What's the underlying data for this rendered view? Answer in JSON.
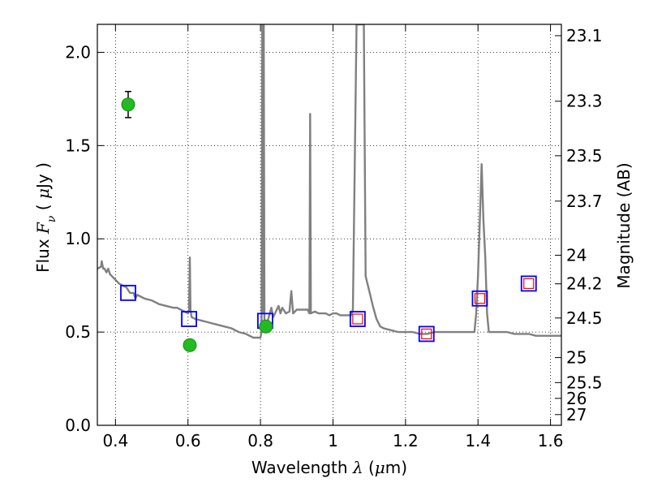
{
  "chart_data": {
    "type": "line",
    "xlabel": {
      "prefix": "Wavelength  ",
      "symbol": "λ",
      "suffix": " (",
      "unit_symbol": "μ",
      "unit_rest": "m)"
    },
    "ylabel": {
      "prefix": "Flux  ",
      "symbol": "F",
      "subscript": "ν",
      "suffix": "  ( ",
      "unit_symbol": "μ",
      "unit_rest": "Jy )"
    },
    "y2label": "Magnitude (AB)",
    "xlim": [
      0.35,
      1.63
    ],
    "ylim": [
      0.0,
      2.15
    ],
    "grid": true,
    "x_ticks": [
      {
        "v": 0.4,
        "label": "0.4"
      },
      {
        "v": 0.6,
        "label": "0.6"
      },
      {
        "v": 0.8,
        "label": "0.8"
      },
      {
        "v": 1.0,
        "label": "1"
      },
      {
        "v": 1.2,
        "label": "1.2"
      },
      {
        "v": 1.4,
        "label": "1.4"
      },
      {
        "v": 1.6,
        "label": "1.6"
      }
    ],
    "y_ticks": [
      {
        "v": 0.0,
        "label": "0.0"
      },
      {
        "v": 0.5,
        "label": "0.5"
      },
      {
        "v": 1.0,
        "label": "1.0"
      },
      {
        "v": 1.5,
        "label": "1.5"
      },
      {
        "v": 2.0,
        "label": "2.0"
      }
    ],
    "y2_ticks": [
      {
        "mag": 23.1,
        "label": "23.1"
      },
      {
        "mag": 23.3,
        "label": "23.3"
      },
      {
        "mag": 23.5,
        "label": "23.5"
      },
      {
        "mag": 23.7,
        "label": "23.7"
      },
      {
        "mag": 24,
        "label": "24"
      },
      {
        "mag": 24.2,
        "label": "24.2"
      },
      {
        "mag": 24.5,
        "label": "24.5"
      },
      {
        "mag": 25,
        "label": "25"
      },
      {
        "mag": 25.5,
        "label": "25.5"
      },
      {
        "mag": 26,
        "label": "26"
      },
      {
        "mag": 27,
        "label": "27"
      }
    ],
    "series": [
      {
        "kind": "line",
        "color": "#808080",
        "points": [
          [
            0.35,
            0.84
          ],
          [
            0.36,
            0.85
          ],
          [
            0.362,
            0.88
          ],
          [
            0.366,
            0.84
          ],
          [
            0.37,
            0.84
          ],
          [
            0.375,
            0.82
          ],
          [
            0.38,
            0.84
          ],
          [
            0.385,
            0.81
          ],
          [
            0.39,
            0.8
          ],
          [
            0.395,
            0.79
          ],
          [
            0.4,
            0.78
          ],
          [
            0.405,
            0.77
          ],
          [
            0.41,
            0.76
          ],
          [
            0.42,
            0.75
          ],
          [
            0.43,
            0.74
          ],
          [
            0.44,
            0.71
          ],
          [
            0.45,
            0.71
          ],
          [
            0.455,
            0.68
          ],
          [
            0.46,
            0.7
          ],
          [
            0.47,
            0.69
          ],
          [
            0.48,
            0.68
          ],
          [
            0.5,
            0.67
          ],
          [
            0.52,
            0.65
          ],
          [
            0.54,
            0.64
          ],
          [
            0.56,
            0.63
          ],
          [
            0.57,
            0.63
          ],
          [
            0.58,
            0.62
          ],
          [
            0.59,
            0.61
          ],
          [
            0.6,
            0.6
          ],
          [
            0.603,
            0.62
          ],
          [
            0.605,
            0.9
          ],
          [
            0.607,
            0.62
          ],
          [
            0.61,
            0.58
          ],
          [
            0.62,
            0.57
          ],
          [
            0.64,
            0.56
          ],
          [
            0.66,
            0.55
          ],
          [
            0.68,
            0.54
          ],
          [
            0.7,
            0.53
          ],
          [
            0.72,
            0.52
          ],
          [
            0.74,
            0.5
          ],
          [
            0.76,
            0.49
          ],
          [
            0.78,
            0.47
          ],
          [
            0.79,
            0.47
          ],
          [
            0.8,
            0.47
          ],
          [
            0.803,
            0.5
          ],
          [
            0.805,
            2.15
          ],
          [
            0.807,
            0.6
          ],
          [
            0.809,
            2.15
          ],
          [
            0.811,
            0.55
          ],
          [
            0.82,
            0.56
          ],
          [
            0.83,
            0.63
          ],
          [
            0.835,
            0.58
          ],
          [
            0.84,
            0.6
          ],
          [
            0.85,
            0.64
          ],
          [
            0.855,
            0.6
          ],
          [
            0.86,
            0.63
          ],
          [
            0.87,
            0.6
          ],
          [
            0.88,
            0.61
          ],
          [
            0.885,
            0.72
          ],
          [
            0.89,
            0.6
          ],
          [
            0.9,
            0.62
          ],
          [
            0.91,
            0.62
          ],
          [
            0.92,
            0.62
          ],
          [
            0.93,
            0.62
          ],
          [
            0.935,
            0.6
          ],
          [
            0.937,
            1.67
          ],
          [
            0.939,
            0.6
          ],
          [
            0.95,
            0.61
          ],
          [
            0.96,
            0.6
          ],
          [
            0.97,
            0.6
          ],
          [
            0.98,
            0.6
          ],
          [
            0.99,
            0.59
          ],
          [
            1.0,
            0.6
          ],
          [
            1.01,
            0.6
          ],
          [
            1.02,
            0.59
          ],
          [
            1.03,
            0.59
          ],
          [
            1.04,
            0.59
          ],
          [
            1.05,
            0.59
          ],
          [
            1.055,
            0.62
          ],
          [
            1.06,
            1.4
          ],
          [
            1.065,
            2.15
          ],
          [
            1.085,
            2.15
          ],
          [
            1.09,
            0.8
          ],
          [
            1.1,
            0.72
          ],
          [
            1.11,
            0.64
          ],
          [
            1.12,
            0.57
          ],
          [
            1.13,
            0.53
          ],
          [
            1.14,
            0.52
          ],
          [
            1.16,
            0.51
          ],
          [
            1.18,
            0.5
          ],
          [
            1.2,
            0.5
          ],
          [
            1.22,
            0.5
          ],
          [
            1.24,
            0.49
          ],
          [
            1.26,
            0.49
          ],
          [
            1.28,
            0.5
          ],
          [
            1.3,
            0.5
          ],
          [
            1.32,
            0.5
          ],
          [
            1.34,
            0.5
          ],
          [
            1.36,
            0.5
          ],
          [
            1.38,
            0.5
          ],
          [
            1.39,
            0.5
          ],
          [
            1.395,
            0.6
          ],
          [
            1.4,
            0.8
          ],
          [
            1.405,
            1.1
          ],
          [
            1.41,
            1.4
          ],
          [
            1.415,
            1.1
          ],
          [
            1.42,
            0.9
          ],
          [
            1.425,
            0.6
          ],
          [
            1.43,
            0.5
          ],
          [
            1.45,
            0.5
          ],
          [
            1.48,
            0.5
          ],
          [
            1.5,
            0.49
          ],
          [
            1.52,
            0.49
          ],
          [
            1.54,
            0.49
          ],
          [
            1.56,
            0.48
          ],
          [
            1.58,
            0.48
          ],
          [
            1.6,
            0.48
          ],
          [
            1.63,
            0.48
          ]
        ]
      },
      {
        "kind": "blue_squares",
        "color": "#0000ff",
        "points": [
          [
            0.435,
            0.71
          ],
          [
            0.603,
            0.57
          ],
          [
            0.813,
            0.56
          ],
          [
            1.068,
            0.57
          ],
          [
            1.258,
            0.49
          ],
          [
            1.405,
            0.68
          ],
          [
            1.54,
            0.76
          ]
        ]
      },
      {
        "kind": "red_squares",
        "color": "#ff0000",
        "points": [
          [
            1.068,
            0.57
          ],
          [
            1.258,
            0.49
          ],
          [
            1.405,
            0.68
          ],
          [
            1.54,
            0.76
          ]
        ]
      },
      {
        "kind": "green_points",
        "color": "#22bb22",
        "points": [
          {
            "x": 0.435,
            "y": 1.72,
            "err": 0.07
          },
          {
            "x": 0.605,
            "y": 0.43,
            "err": 0.02
          },
          {
            "x": 0.815,
            "y": 0.53,
            "err": 0.03
          }
        ]
      }
    ]
  }
}
